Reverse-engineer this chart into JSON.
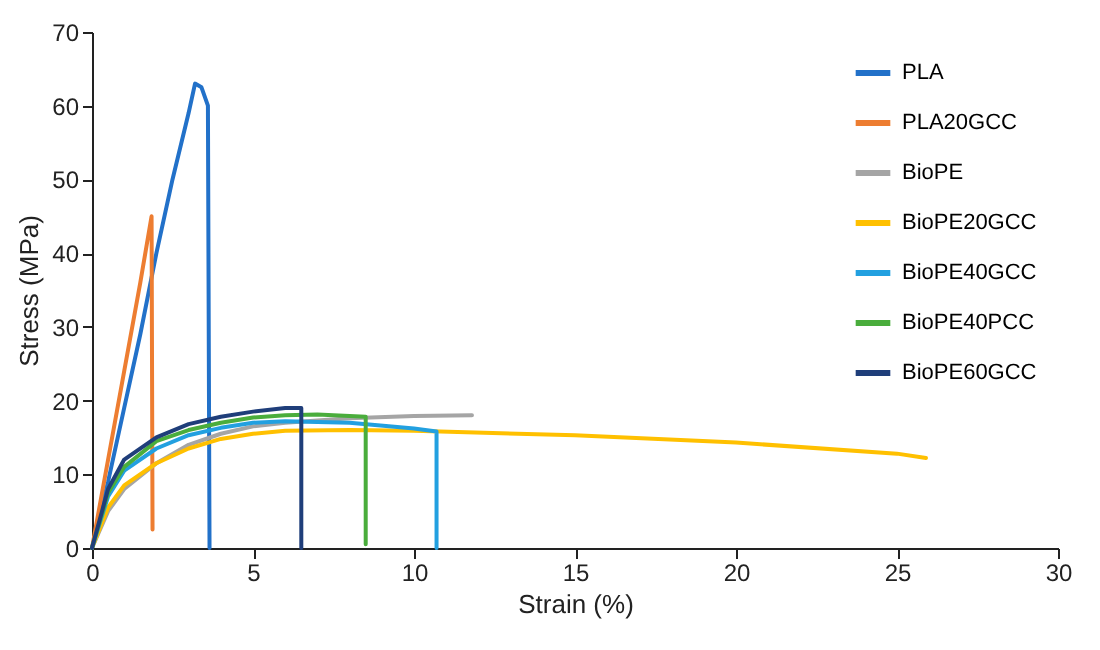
{
  "chart_data": {
    "type": "line",
    "xlabel": "Strain (%)",
    "ylabel": "Stress (MPa)",
    "xlim": [
      0,
      30
    ],
    "xticks": [
      0,
      5,
      10,
      15,
      20,
      25,
      30
    ],
    "ylim": [
      0,
      70
    ],
    "yticks": [
      0,
      10,
      20,
      30,
      40,
      50,
      60,
      70
    ],
    "grid": false,
    "legend": "top right",
    "marker": "none",
    "line_style": "solid",
    "series": [
      {
        "name": "PLA",
        "color": "#2271c9",
        "x": [
          0,
          0.5,
          1,
          1.5,
          2,
          2.5,
          3,
          3.2,
          3.4,
          3.6,
          3.65
        ],
        "values": [
          0,
          9,
          19,
          29,
          40,
          50,
          59,
          63,
          62.5,
          60,
          0
        ]
      },
      {
        "name": "PLA20GCC",
        "color": "#ed7d31",
        "x": [
          0,
          0.5,
          1,
          1.5,
          1.85,
          1.88
        ],
        "values": [
          0,
          12,
          24,
          36,
          45,
          2.5
        ]
      },
      {
        "name": "BioPE",
        "color": "#a5a5a5",
        "x": [
          0,
          0.5,
          1,
          2,
          3,
          4,
          5,
          6,
          8,
          10,
          11.8
        ],
        "values": [
          0,
          5,
          8,
          11.5,
          14,
          15.5,
          16.5,
          17,
          17.6,
          17.9,
          18
        ]
      },
      {
        "name": "BioPE20GCC",
        "color": "#ffc000",
        "x": [
          0,
          0.5,
          1,
          2,
          3,
          4,
          5,
          6,
          8,
          10,
          15,
          20,
          25,
          25.9
        ],
        "values": [
          0,
          5.5,
          8.5,
          11.5,
          13.5,
          14.8,
          15.5,
          15.9,
          16,
          15.9,
          15.3,
          14.3,
          12.8,
          12.2
        ]
      },
      {
        "name": "BioPE40GCC",
        "color": "#22a0e0",
        "x": [
          0,
          0.5,
          1,
          2,
          3,
          4,
          5,
          6,
          8,
          10,
          10.7,
          10.7
        ],
        "values": [
          0,
          7,
          10.5,
          13.5,
          15.3,
          16.3,
          17,
          17.2,
          17,
          16.2,
          15.8,
          0
        ]
      },
      {
        "name": "BioPE40PCC",
        "color": "#4aad3c",
        "x": [
          0,
          0.5,
          1,
          2,
          3,
          4,
          5,
          6,
          7,
          8.5,
          8.5
        ],
        "values": [
          0,
          7.5,
          11,
          14.5,
          16,
          17,
          17.7,
          18,
          18.1,
          17.8,
          0.5
        ]
      },
      {
        "name": "BioPE60GCC",
        "color": "#1f3e7a",
        "x": [
          0,
          0.5,
          1,
          2,
          3,
          4,
          5,
          6,
          6.5,
          6.5
        ],
        "values": [
          0,
          8,
          12,
          15,
          16.8,
          17.8,
          18.5,
          19,
          19,
          0
        ]
      }
    ]
  }
}
